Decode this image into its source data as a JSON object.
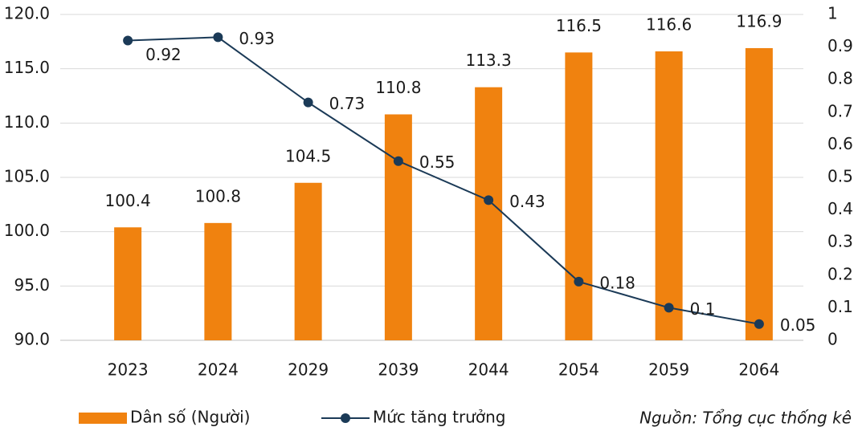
{
  "chart_data": {
    "type": "bar_line",
    "categories": [
      "2023",
      "2024",
      "2029",
      "2039",
      "2044",
      "2054",
      "2059",
      "2064"
    ],
    "series": [
      {
        "name": "Dân số (Người)",
        "type": "bar",
        "color": "#f0820f",
        "values": [
          100.4,
          100.8,
          104.5,
          110.8,
          113.3,
          116.5,
          116.6,
          116.9
        ]
      },
      {
        "name": "Mức tăng trưởng",
        "type": "line",
        "axis": "y2",
        "color": "#1b3a57",
        "values": [
          0.92,
          0.93,
          0.73,
          0.55,
          0.43,
          0.18,
          0.1,
          0.05
        ]
      }
    ],
    "ylim": [
      90,
      120
    ],
    "yticks": [
      {
        "value": 90,
        "label": "90.0"
      },
      {
        "value": 95,
        "label": "95.0"
      },
      {
        "value": 100,
        "label": "100.0"
      },
      {
        "value": 105,
        "label": "105.0"
      },
      {
        "value": 110,
        "label": "110.0"
      },
      {
        "value": 115,
        "label": "115.0"
      },
      {
        "value": 120,
        "label": "120.0"
      }
    ],
    "y2lim": [
      0,
      1
    ],
    "y2ticks": [
      0,
      0.1,
      0.2,
      0.3,
      0.4,
      0.5,
      0.6,
      0.7,
      0.8,
      0.9,
      1
    ],
    "grid": true,
    "legend": "bottom",
    "source": "Nguồn: Tổng cục thống kê"
  }
}
